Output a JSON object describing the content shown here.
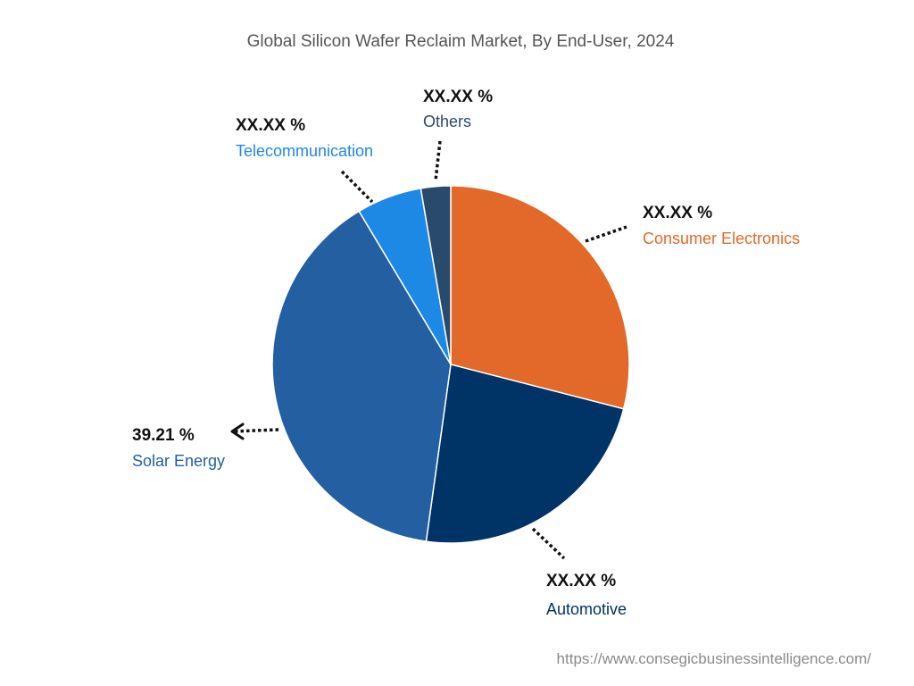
{
  "chart_data": {
    "type": "pie",
    "title": "Global Silicon Wafer Reclaim Market, By End-User, 2024",
    "slices": [
      {
        "name": "Consumer Electronics",
        "value": 29.0,
        "label": "XX.XX %",
        "color": "#E2692A"
      },
      {
        "name": "Automotive",
        "value": 23.2,
        "label": "XX.XX %",
        "color": "#003366"
      },
      {
        "name": "Solar Energy",
        "value": 39.21,
        "label": "39.21 %",
        "color": "#245FA1"
      },
      {
        "name": "Telecommunication",
        "value": 5.9,
        "label": "XX.XX %",
        "color": "#1E88E5"
      },
      {
        "name": "Others",
        "value": 2.69,
        "label": "XX.XX %",
        "color": "#2A4A6B"
      }
    ],
    "legend": "none"
  },
  "source": "https://www.consegicbusinessintelligence.com/"
}
